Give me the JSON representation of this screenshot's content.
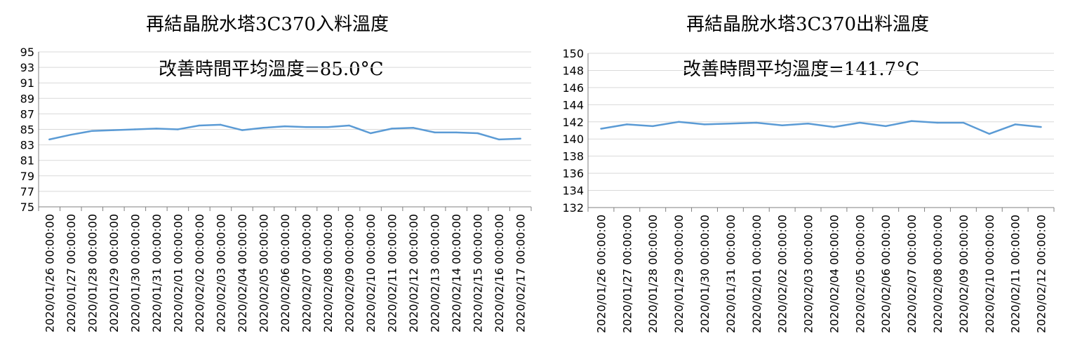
{
  "colors": {
    "line": "#5b9bd5",
    "grid": "#d9d9d9",
    "axis": "#000000",
    "text": "#000000"
  },
  "chart_data": [
    {
      "type": "line",
      "title": "再結晶脫水塔3C370入料溫度",
      "annotation": "改善時間平均溫度=85.0°C",
      "xlabel": "",
      "ylabel": "",
      "ylim": [
        75,
        95
      ],
      "yticks": [
        75,
        77,
        79,
        81,
        83,
        85,
        87,
        89,
        91,
        93,
        95
      ],
      "grid": true,
      "legend": "none",
      "categories": [
        "2020/01/26 00:00:00",
        "2020/01/27 00:00:00",
        "2020/01/28 00:00:00",
        "2020/01/29 00:00:00",
        "2020/01/30 00:00:00",
        "2020/01/31 00:00:00",
        "2020/02/01 00:00:00",
        "2020/02/02 00:00:00",
        "2020/02/03 00:00:00",
        "2020/02/04 00:00:00",
        "2020/02/05 00:00:00",
        "2020/02/06 00:00:00",
        "2020/02/07 00:00:00",
        "2020/02/08 00:00:00",
        "2020/02/09 00:00:00",
        "2020/02/10 00:00:00",
        "2020/02/11 00:00:00",
        "2020/02/12 00:00:00",
        "2020/02/13 00:00:00",
        "2020/02/14 00:00:00",
        "2020/02/15 00:00:00",
        "2020/02/16 00:00:00",
        "2020/02/17 00:00:00"
      ],
      "series": [
        {
          "values": [
            83.7,
            84.3,
            84.8,
            84.9,
            85.0,
            85.1,
            85.0,
            85.5,
            85.6,
            84.9,
            85.2,
            85.4,
            85.3,
            85.3,
            85.5,
            84.5,
            85.1,
            85.2,
            84.6,
            84.6,
            84.5,
            83.7,
            83.8
          ]
        }
      ]
    },
    {
      "type": "line",
      "title": "再結晶脫水塔3C370出料溫度",
      "annotation": "改善時間平均溫度=141.7°C",
      "xlabel": "",
      "ylabel": "",
      "ylim": [
        132,
        150
      ],
      "yticks": [
        132,
        134,
        136,
        138,
        140,
        142,
        144,
        146,
        148,
        150
      ],
      "grid": true,
      "legend": "none",
      "categories": [
        "2020/01/26 00:00:00",
        "2020/01/27 00:00:00",
        "2020/01/28 00:00:00",
        "2020/01/29 00:00:00",
        "2020/01/30 00:00:00",
        "2020/01/31 00:00:00",
        "2020/02/01 00:00:00",
        "2020/02/02 00:00:00",
        "2020/02/03 00:00:00",
        "2020/02/04 00:00:00",
        "2020/02/05 00:00:00",
        "2020/02/06 00:00:00",
        "2020/02/07 00:00:00",
        "2020/02/08 00:00:00",
        "2020/02/09 00:00:00",
        "2020/02/10 00:00:00",
        "2020/02/11 00:00:00",
        "2020/02/12 00:00:00"
      ],
      "series": [
        {
          "values": [
            141.2,
            141.7,
            141.5,
            142.0,
            141.7,
            141.8,
            141.9,
            141.6,
            141.8,
            141.4,
            141.9,
            141.5,
            142.1,
            141.9,
            141.9,
            140.6,
            141.7,
            141.4
          ]
        }
      ]
    }
  ]
}
